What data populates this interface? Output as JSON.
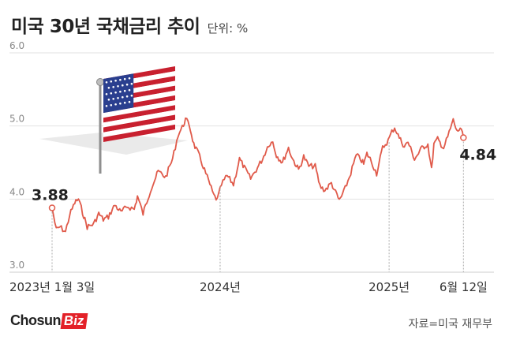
{
  "header": {
    "title": "미국 30년 국채금리 추이",
    "unit": "단위: %"
  },
  "footer": {
    "logo_text_main": "Chosun",
    "logo_text_box": "Biz",
    "source": "자료=미국 재무부"
  },
  "colors": {
    "line": "#e05a4a",
    "grid": "#e2e2e2",
    "axis": "#cccccc",
    "brand_red": "#e32128"
  },
  "icons": [
    "us-flag-icon"
  ],
  "chart_data": {
    "type": "line",
    "title": "미국 30년 국채금리 추이",
    "ylabel": "",
    "xlabel": "",
    "ylim": [
      3.0,
      6.0
    ],
    "yticks": [
      3.0,
      4.0,
      5.0,
      6.0
    ],
    "ytick_labels": [
      "3.0",
      "4.0",
      "5.0",
      "6.0"
    ],
    "xlim": [
      "2023-01-03",
      "2025-06-20"
    ],
    "grid": true,
    "x_labels": [
      {
        "date": "2023-01-03",
        "label": "2023년 1월 3일"
      },
      {
        "date": "2024-01-02",
        "label": "2024년"
      },
      {
        "date": "2025-01-02",
        "label": "2025년"
      },
      {
        "date": "2025-06-12",
        "label": "6월 12일"
      }
    ],
    "annotations": [
      {
        "date": "2023-01-03",
        "value": 3.88,
        "label": "3.88"
      },
      {
        "date": "2025-06-12",
        "value": 4.84,
        "label": "4.84"
      }
    ],
    "series": [
      {
        "points": [
          [
            "2023-01-03",
            3.88
          ],
          [
            "2023-01-12",
            3.58
          ],
          [
            "2023-01-20",
            3.62
          ],
          [
            "2023-02-01",
            3.55
          ],
          [
            "2023-02-10",
            3.78
          ],
          [
            "2023-02-21",
            3.95
          ],
          [
            "2023-03-01",
            4.0
          ],
          [
            "2023-03-10",
            3.82
          ],
          [
            "2023-03-20",
            3.62
          ],
          [
            "2023-04-03",
            3.66
          ],
          [
            "2023-04-14",
            3.8
          ],
          [
            "2023-04-24",
            3.72
          ],
          [
            "2023-05-05",
            3.76
          ],
          [
            "2023-05-19",
            3.92
          ],
          [
            "2023-06-01",
            3.82
          ],
          [
            "2023-06-15",
            3.9
          ],
          [
            "2023-06-30",
            3.86
          ],
          [
            "2023-07-07",
            4.04
          ],
          [
            "2023-07-19",
            3.8
          ],
          [
            "2023-08-04",
            4.12
          ],
          [
            "2023-08-21",
            4.38
          ],
          [
            "2023-09-06",
            4.3
          ],
          [
            "2023-09-21",
            4.55
          ],
          [
            "2023-10-03",
            4.88
          ],
          [
            "2023-10-12",
            4.98
          ],
          [
            "2023-10-19",
            5.09
          ],
          [
            "2023-10-27",
            5.02
          ],
          [
            "2023-11-06",
            4.75
          ],
          [
            "2023-11-16",
            4.62
          ],
          [
            "2023-11-29",
            4.4
          ],
          [
            "2023-12-08",
            4.25
          ],
          [
            "2023-12-19",
            4.05
          ],
          [
            "2023-12-27",
            3.99
          ],
          [
            "2024-01-05",
            4.2
          ],
          [
            "2024-01-17",
            4.32
          ],
          [
            "2024-01-31",
            4.2
          ],
          [
            "2024-02-13",
            4.55
          ],
          [
            "2024-02-26",
            4.4
          ],
          [
            "2024-03-08",
            4.28
          ],
          [
            "2024-03-20",
            4.4
          ],
          [
            "2024-04-03",
            4.55
          ],
          [
            "2024-04-16",
            4.75
          ],
          [
            "2024-04-25",
            4.78
          ],
          [
            "2024-05-03",
            4.6
          ],
          [
            "2024-05-16",
            4.5
          ],
          [
            "2024-05-29",
            4.7
          ],
          [
            "2024-06-07",
            4.55
          ],
          [
            "2024-06-20",
            4.4
          ],
          [
            "2024-07-01",
            4.58
          ],
          [
            "2024-07-12",
            4.45
          ],
          [
            "2024-07-26",
            4.45
          ],
          [
            "2024-08-05",
            4.18
          ],
          [
            "2024-08-16",
            4.12
          ],
          [
            "2024-08-30",
            4.22
          ],
          [
            "2024-09-11",
            4.05
          ],
          [
            "2024-09-16",
            3.98
          ],
          [
            "2024-09-26",
            4.1
          ],
          [
            "2024-10-08",
            4.3
          ],
          [
            "2024-10-23",
            4.6
          ],
          [
            "2024-11-01",
            4.55
          ],
          [
            "2024-11-08",
            4.48
          ],
          [
            "2024-11-15",
            4.62
          ],
          [
            "2024-11-22",
            4.55
          ],
          [
            "2024-12-06",
            4.35
          ],
          [
            "2024-12-19",
            4.7
          ],
          [
            "2024-12-31",
            4.8
          ],
          [
            "2025-01-08",
            4.92
          ],
          [
            "2025-01-14",
            4.98
          ],
          [
            "2025-01-24",
            4.84
          ],
          [
            "2025-02-04",
            4.72
          ],
          [
            "2025-02-12",
            4.78
          ],
          [
            "2025-02-26",
            4.55
          ],
          [
            "2025-03-04",
            4.6
          ],
          [
            "2025-03-14",
            4.7
          ],
          [
            "2025-03-27",
            4.75
          ],
          [
            "2025-04-04",
            4.4
          ],
          [
            "2025-04-09",
            4.75
          ],
          [
            "2025-04-17",
            4.82
          ],
          [
            "2025-04-30",
            4.7
          ],
          [
            "2025-05-09",
            4.85
          ],
          [
            "2025-05-21",
            5.08
          ],
          [
            "2025-05-29",
            4.92
          ],
          [
            "2025-06-05",
            4.97
          ],
          [
            "2025-06-12",
            4.84
          ]
        ]
      }
    ]
  }
}
